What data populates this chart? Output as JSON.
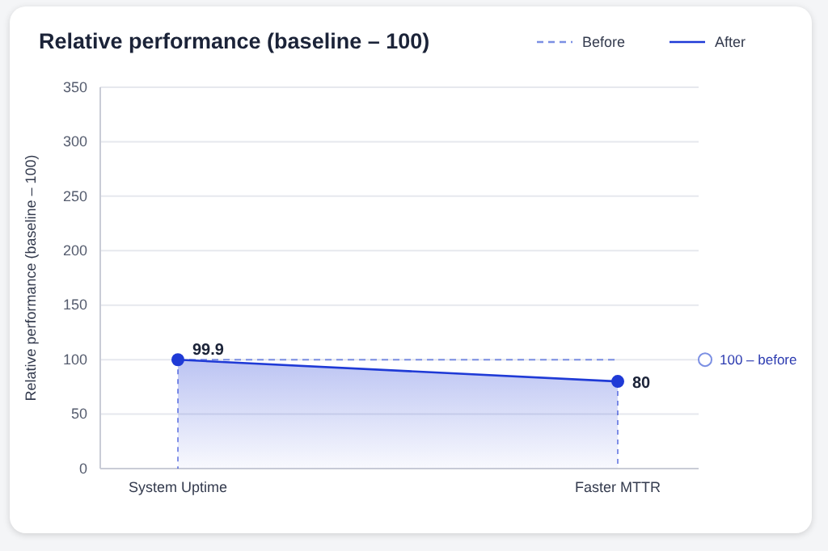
{
  "chart_data": {
    "type": "line",
    "title": "Relative performance (baseline – 100)",
    "ylabel": "Relative performance (baseline – 100)",
    "categories": [
      "System Uptime",
      "Faster MTTR"
    ],
    "series": [
      {
        "name": "Before",
        "color": "#7b8fe3",
        "values": [
          100,
          100
        ],
        "line_style": "dashed",
        "marker": "none"
      },
      {
        "name": "After",
        "color": "#1f3ad6",
        "values": [
          99.9,
          80
        ],
        "type": "area",
        "marker": "circle",
        "value_labels": [
          "99.9",
          "80"
        ]
      }
    ],
    "annotations": [
      "100 – before"
    ],
    "ylim": [
      0,
      350
    ],
    "yticks": [
      0,
      50,
      100,
      150,
      200,
      250,
      300,
      350
    ],
    "grid": "y",
    "legend": "top right"
  }
}
